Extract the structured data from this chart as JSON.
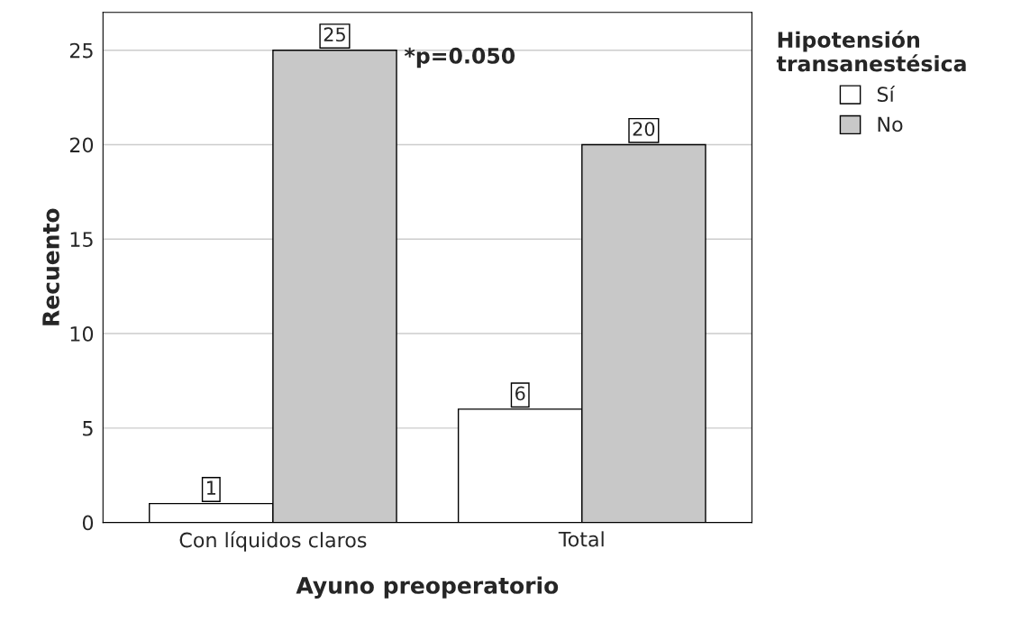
{
  "chart_data": {
    "type": "bar",
    "xlabel": "Ayuno preoperatorio",
    "ylabel": "Recuento",
    "legend_title": "Hipotensión\ntransanestésica",
    "categories": [
      "Con líquidos claros",
      "Total"
    ],
    "series": [
      {
        "name": "Sí",
        "color": "#ffffff",
        "values": [
          1,
          6
        ]
      },
      {
        "name": "No",
        "color": "#c8c8c8",
        "values": [
          25,
          20
        ]
      }
    ],
    "ylim": [
      0,
      27
    ],
    "yticks": [
      0,
      5,
      10,
      15,
      20,
      25
    ],
    "grid": "y",
    "data_labels": true,
    "legend": "top right",
    "annotations": [
      "*p=0.050"
    ]
  }
}
